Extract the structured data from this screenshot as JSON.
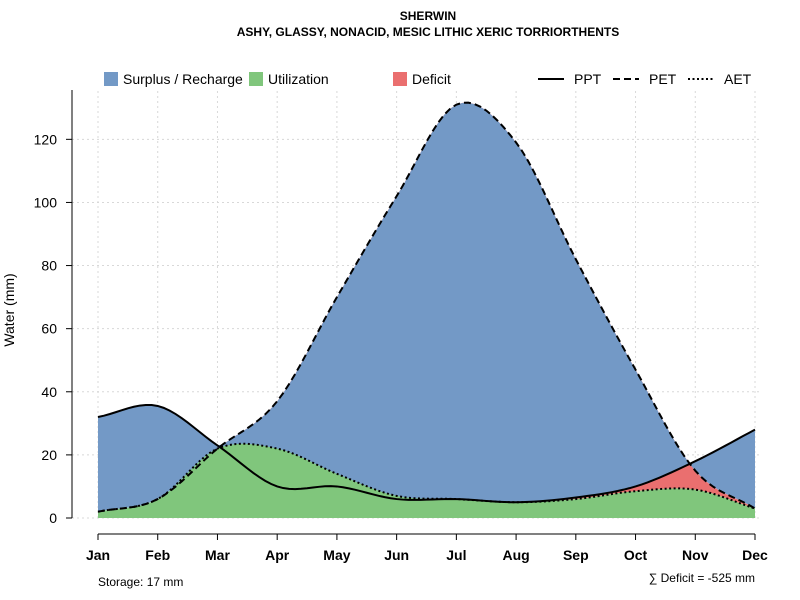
{
  "chart_data": {
    "type": "area",
    "title": "SHERWIN",
    "subtitle": "ASHY, GLASSY, NONACID, MESIC LITHIC XERIC TORRIORTHENTS",
    "xlabel": "",
    "ylabel": "Water (mm)",
    "ylim": [
      0,
      135
    ],
    "yticks": [
      0,
      20,
      40,
      60,
      80,
      100,
      120
    ],
    "grid": true,
    "categories": [
      "Jan",
      "Feb",
      "Mar",
      "Apr",
      "May",
      "Jun",
      "Jul",
      "Aug",
      "Sep",
      "Oct",
      "Nov",
      "Dec"
    ],
    "series": [
      {
        "name": "PPT",
        "style": "solid",
        "values": [
          32,
          35.5,
          23,
          10,
          10,
          6,
          6,
          5,
          6.5,
          10,
          18,
          28
        ]
      },
      {
        "name": "PET",
        "style": "dashed",
        "values": [
          2,
          6,
          22,
          37,
          70,
          102,
          131,
          119,
          82,
          47,
          15,
          3
        ]
      },
      {
        "name": "AET",
        "style": "dotted",
        "values": [
          2,
          6,
          22,
          22,
          14,
          7,
          6,
          5,
          6,
          8.5,
          9,
          3
        ]
      }
    ],
    "legend": {
      "position": "top",
      "fills": [
        {
          "name": "Surplus / Recharge",
          "color": "#7399c6"
        },
        {
          "name": "Utilization",
          "color": "#80c67c"
        },
        {
          "name": "Deficit",
          "color": "#ea6f6f"
        }
      ],
      "lines": [
        {
          "name": "PPT",
          "style": "solid"
        },
        {
          "name": "PET",
          "style": "dashed"
        },
        {
          "name": "AET",
          "style": "dotted"
        }
      ]
    },
    "annotations": {
      "storage": "Storage: 17 mm",
      "deficit": "∑ Deficit = -525 mm"
    }
  }
}
